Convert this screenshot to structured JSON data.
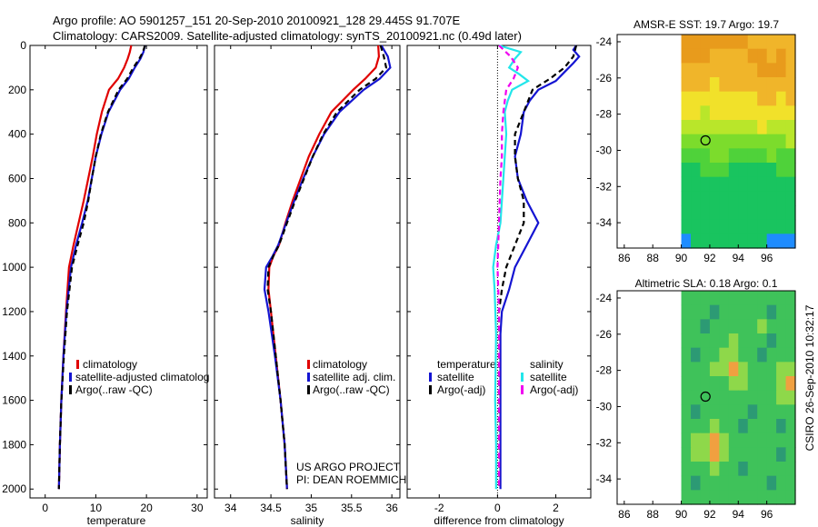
{
  "header": {
    "line1": "Argo profile: AO 5901257_151 20-Sep-2010 20100921_128 29.445S 91.707E",
    "line2": "Climatology: CARS2009. Satellite-adjusted climatology: synTS_20100921.nc (0.49d later)"
  },
  "side_stamp": "CSIRO 26-Sep-2010 10:32:17",
  "colors": {
    "red": "#e00000",
    "blue": "#1414d2",
    "black": "#000000",
    "cyan": "#22e6ea",
    "magenta": "#f000f0"
  },
  "chart_data": [
    {
      "id": "temperature",
      "type": "line",
      "xlabel": "temperature",
      "xlim": [
        -3,
        32
      ],
      "xticks": [
        0,
        10,
        20,
        30
      ],
      "ylim": [
        2040,
        0
      ],
      "yticks": [
        0,
        200,
        400,
        600,
        800,
        1000,
        1200,
        1400,
        1600,
        1800,
        2000
      ],
      "legend": [
        "climatology",
        "satellite-adjusted climatolog",
        "Argo(..raw -QC)"
      ],
      "series": [
        {
          "name": "climatology",
          "color": "red",
          "dash": "",
          "depth": [
            0,
            30,
            60,
            100,
            150,
            200,
            300,
            400,
            500,
            600,
            700,
            800,
            900,
            1000,
            1200,
            1400,
            1600,
            1800,
            2000
          ],
          "values": [
            17,
            16.7,
            16.3,
            15.6,
            14.4,
            12.6,
            11.2,
            10.2,
            9.4,
            8.5,
            7.6,
            6.6,
            5.6,
            4.7,
            4.1,
            3.6,
            3.2,
            2.9,
            2.7
          ]
        },
        {
          "name": "satellite-adjusted climatolog",
          "color": "blue",
          "dash": "",
          "depth": [
            0,
            30,
            60,
            100,
            150,
            200,
            300,
            400,
            500,
            600,
            700,
            800,
            900,
            1000,
            1200,
            1400,
            1600,
            1800,
            2000
          ],
          "values": [
            19.7,
            19.4,
            18.8,
            17.7,
            16.5,
            14.8,
            12.5,
            11.1,
            10,
            9.2,
            8.4,
            7.3,
            6.1,
            5.1,
            4.2,
            3.6,
            3.2,
            2.9,
            2.7
          ]
        },
        {
          "name": "Argo(..raw -QC)",
          "color": "black",
          "dash": "6 4",
          "depth": [
            0,
            30,
            60,
            100,
            150,
            200,
            300,
            400,
            500,
            600,
            700,
            800,
            900,
            1000,
            1200,
            1400,
            1600,
            1800,
            2000
          ],
          "values": [
            19.7,
            19.3,
            18.6,
            17.4,
            16.2,
            14.5,
            12.4,
            11,
            10,
            9.2,
            8.5,
            7.6,
            6.4,
            5.3,
            4.3,
            3.7,
            3.2,
            2.9,
            2.7
          ]
        }
      ]
    },
    {
      "id": "salinity",
      "type": "line",
      "xlabel": "salinity",
      "xlim": [
        33.8,
        36.1
      ],
      "xticks": [
        34,
        34.5,
        35,
        35.5,
        36
      ],
      "ylim": [
        2040,
        0
      ],
      "yticks": [
        0,
        200,
        400,
        600,
        800,
        1000,
        1200,
        1400,
        1600,
        1800,
        2000
      ],
      "legend": [
        "climatology",
        "satellite adj. clim.",
        "Argo(..raw -QC)"
      ],
      "annotation": [
        "US ARGO PROJECT",
        "PI: DEAN ROEMMICH"
      ],
      "series": [
        {
          "name": "climatology",
          "color": "red",
          "dash": "",
          "depth": [
            0,
            50,
            100,
            150,
            200,
            300,
            400,
            500,
            600,
            700,
            800,
            900,
            950,
            1000,
            1100,
            1200,
            1400,
            1600,
            1800,
            2000
          ],
          "values": [
            35.83,
            35.84,
            35.8,
            35.67,
            35.52,
            35.25,
            35.1,
            34.97,
            34.87,
            34.77,
            34.68,
            34.6,
            34.53,
            34.48,
            34.47,
            34.5,
            34.56,
            34.62,
            34.67,
            34.7
          ]
        },
        {
          "name": "satellite adj. clim.",
          "color": "blue",
          "dash": "",
          "depth": [
            0,
            50,
            100,
            150,
            200,
            300,
            400,
            500,
            600,
            700,
            800,
            900,
            950,
            1000,
            1100,
            1200,
            1400,
            1600,
            1800,
            2000
          ],
          "values": [
            35.87,
            35.95,
            35.98,
            35.85,
            35.65,
            35.35,
            35.16,
            35.02,
            34.9,
            34.79,
            34.69,
            34.59,
            34.52,
            34.44,
            34.42,
            34.47,
            34.55,
            34.62,
            34.67,
            34.7
          ]
        },
        {
          "name": "Argo(..raw -QC)",
          "color": "black",
          "dash": "6 4",
          "depth": [
            0,
            50,
            100,
            150,
            200,
            300,
            400,
            500,
            600,
            700,
            800,
            900,
            950,
            1000,
            1100,
            1200,
            1400,
            1600,
            1800,
            2000
          ],
          "values": [
            35.86,
            35.9,
            35.93,
            35.8,
            35.6,
            35.32,
            35.15,
            35.02,
            34.91,
            34.8,
            34.7,
            34.6,
            34.53,
            34.47,
            34.46,
            34.5,
            34.56,
            34.62,
            34.67,
            34.7
          ]
        }
      ]
    },
    {
      "id": "difference",
      "type": "line",
      "xlabel": "difference from climatology",
      "xlim": [
        -3.1,
        3.2
      ],
      "xticks": [
        -2,
        0,
        2
      ],
      "ylim": [
        2040,
        0
      ],
      "yticks": [
        0,
        200,
        400,
        600,
        800,
        1000,
        1200,
        1400,
        1600,
        1800,
        2000
      ],
      "legend_left_title": "temperature",
      "legend_right_title": "salinity",
      "legend": [
        "satellite",
        "Argo(-adj)",
        "satellite",
        "Argo(-adj)"
      ],
      "series": [
        {
          "name": "temperature satellite",
          "color": "blue",
          "dash": "",
          "depth": [
            0,
            20,
            50,
            80,
            120,
            160,
            200,
            250,
            300,
            400,
            500,
            600,
            700,
            800,
            900,
            1000,
            1100,
            1200,
            1300,
            1400,
            1600,
            1800,
            2000
          ],
          "values": [
            2.7,
            2.6,
            2.8,
            2.6,
            2.3,
            2,
            1.4,
            1.1,
            0.9,
            0.8,
            0.6,
            0.7,
            1.0,
            1.4,
            1.0,
            0.6,
            0.4,
            0.15,
            0.1,
            0.1,
            0.1,
            0.1,
            0.1
          ]
        },
        {
          "name": "temperature Argo(-adj)",
          "color": "black",
          "dash": "6 4",
          "depth": [
            0,
            50,
            100,
            150,
            200,
            300,
            400,
            500,
            600,
            700,
            800,
            900,
            1000,
            1100,
            1200,
            1400,
            1600,
            1800,
            2000
          ],
          "values": [
            2.7,
            2.6,
            2.3,
            1.8,
            1.2,
            0.9,
            0.6,
            0.6,
            0.7,
            0.9,
            0.9,
            0.6,
            0.3,
            0.15,
            0.05,
            0.05,
            0.05,
            0.05,
            0.05
          ]
        },
        {
          "name": "salinity satellite",
          "color": "cyan",
          "dash": "",
          "depth": [
            0,
            30,
            60,
            100,
            130,
            160,
            200,
            250,
            300,
            400,
            600,
            800,
            900,
            1000,
            1100,
            1300,
            1600,
            1800,
            2000
          ],
          "values": [
            0.05,
            0.8,
            0.6,
            0.4,
            0.75,
            1.05,
            0.5,
            0.35,
            0.25,
            0.3,
            0.2,
            0.1,
            -0.05,
            -0.15,
            -0.1,
            -0.05,
            -0.08,
            -0.05,
            -0.05
          ]
        },
        {
          "name": "salinity Argo(-adj)",
          "color": "magenta",
          "dash": "6 4",
          "depth": [
            0,
            50,
            100,
            150,
            200,
            300,
            400,
            500,
            600,
            800,
            1000,
            1200,
            1400,
            1600,
            1800,
            2000
          ],
          "values": [
            0.05,
            0.45,
            0.7,
            0.55,
            0.3,
            0.2,
            0.15,
            0.15,
            0.1,
            0.05,
            0.0,
            0.05,
            0.05,
            0.05,
            0.05,
            0.05
          ]
        }
      ]
    },
    {
      "id": "sst_map",
      "type": "heatmap",
      "title": "AMSR-E SST: 19.7 Argo: 19.7",
      "xlim": [
        85.5,
        98
      ],
      "ylim": [
        -35.4,
        -23.6
      ],
      "xticks": [
        86,
        88,
        90,
        92,
        94,
        96
      ],
      "yticks": [
        -24,
        -26,
        -28,
        -30,
        -32,
        -34
      ],
      "data_xmin": 90,
      "argo_position": [
        91.7,
        -29.45
      ],
      "rows": [
        "HHHHHHHGGGGG",
        "HHHGGGGHHGHG",
        "GGGGGGGGHHHG",
        "GGGFGGGGGGGG",
        "FFFFFFFFGGFG",
        "FFEFFFFFFFFF",
        "EEEEEEEEFEEE",
        "DDDDDDDDDDDE",
        "CCCDDCCCCDCC",
        "BBCCCBBBBBCC",
        "BBBBBBBBBBBB",
        "BBBBBBBBBBBB",
        "BBBBBBBBBBBB",
        "BBBBBBBBBBBB",
        "ABBBBBBBBAAA"
      ]
    },
    {
      "id": "sla_map",
      "type": "heatmap",
      "title": "Altimetric SLA: 0.18 Argo: 0.1",
      "xlim": [
        85.5,
        98
      ],
      "ylim": [
        -35.4,
        -23.6
      ],
      "xticks": [
        86,
        88,
        90,
        92,
        94,
        96
      ],
      "yticks": [
        -24,
        -26,
        -28,
        -30,
        -32,
        -34
      ],
      "data_xmin": 90,
      "argo_position": [
        91.7,
        -29.45
      ],
      "rows": [
        "DDDDDDDDDDDD",
        "DDDCDDDDDCDD",
        "DDCDDDDDEDDD",
        "DDDDDEDDDCDD",
        "DCDDEEDDCDDD",
        "DDDEEFEDDDEE",
        "DDDDDEEDDDEF",
        "DDDDDDDDDDEE",
        "DCDDDDDCDDDD",
        "DDDEDDCDDDCD",
        "DEEFEDDDDDDD",
        "DEEFEDDDDDCD",
        "DDDEDDCDDDDD",
        "DCDDDDDDDCDD",
        "DDDDDDDDDDDD"
      ]
    }
  ]
}
